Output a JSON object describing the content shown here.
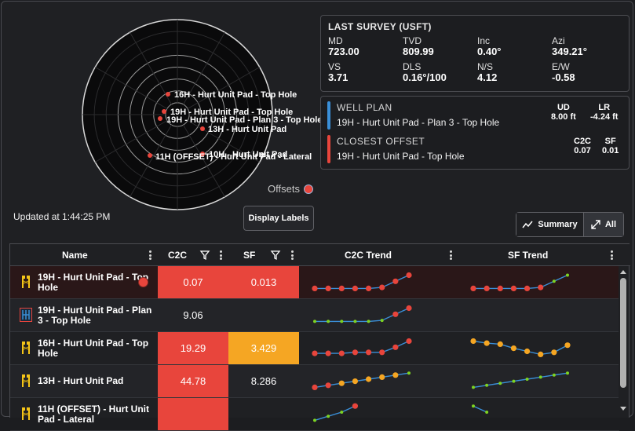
{
  "polar": {
    "labels": [
      {
        "text": "16H - Hurt Unit Pad - Top Hole"
      },
      {
        "text": "19H - Hurt Unit Pad - Top Hole"
      },
      {
        "text": "19H - Hurt Unit Pad - Plan 3 - Top Hole"
      },
      {
        "text": "13H - Hurt Unit Pad"
      },
      {
        "text": "10H - Hurt Unit Pad"
      },
      {
        "text": "11H (OFFSET) - Hurt Unit Pad - Lateral"
      }
    ],
    "marker_color": "#e8453c"
  },
  "legend": {
    "offsets_label": "Offsets"
  },
  "updated": "Updated at 1:44:25 PM",
  "buttons": {
    "display_labels": "Display Labels",
    "summary": "Summary",
    "all": "All"
  },
  "survey": {
    "title": "LAST SURVEY (USFT)",
    "fields": [
      {
        "label": "MD",
        "value": "723.00"
      },
      {
        "label": "TVD",
        "value": "809.99"
      },
      {
        "label": "Inc",
        "value": "0.40°"
      },
      {
        "label": "Azi",
        "value": "349.21°"
      },
      {
        "label": "VS",
        "value": "3.71"
      },
      {
        "label": "DLS",
        "value": "0.16°/100"
      },
      {
        "label": "N/S",
        "value": "4.12"
      },
      {
        "label": "E/W",
        "value": "-0.58"
      }
    ]
  },
  "well_plan": {
    "heading": "WELL PLAN",
    "name": "19H - Hurt Unit Pad - Plan 3 - Top Hole",
    "ud_label": "UD",
    "ud_value": "8.00 ft",
    "lr_label": "LR",
    "lr_value": "-4.24 ft",
    "color": "#3a8fd8"
  },
  "closest_offset": {
    "heading": "CLOSEST OFFSET",
    "name": "19H - Hurt Unit Pad - Top Hole",
    "c2c_label": "C2C",
    "c2c_value": "0.07",
    "sf_label": "SF",
    "sf_value": "0.01",
    "color": "#e8453c"
  },
  "table": {
    "headers": {
      "name": "Name",
      "c2c": "C2C",
      "sf": "SF",
      "c2c_trend": "C2C Trend",
      "sf_trend": "SF Trend"
    },
    "rows": [
      {
        "name": "19H - Hurt Unit Pad - Top Hole",
        "c2c": "0.07",
        "sf": "0.013",
        "c2c_bg": "#e8453c",
        "sf_bg": "#e8453c",
        "icon": "rig-icon",
        "alert": true,
        "c2c_trend": [
          0.1,
          0.1,
          0.1,
          0.1,
          0.1,
          0.15,
          0.45,
          0.75
        ],
        "c2c_colors": [
          "red",
          "red",
          "red",
          "red",
          "red",
          "red",
          "red",
          "red"
        ],
        "sf_trend": [
          0.1,
          0.1,
          0.1,
          0.1,
          0.1,
          0.15,
          0.45,
          0.75
        ],
        "sf_colors": [
          "red",
          "red",
          "red",
          "red",
          "red",
          "red",
          "green",
          "green"
        ]
      },
      {
        "name": "19H - Hurt Unit Pad - Plan 3 - Top Hole",
        "c2c": "9.06",
        "sf": "",
        "c2c_bg": "",
        "sf_bg": "",
        "icon": "plan-icon",
        "alert": false,
        "c2c_trend": [
          0.1,
          0.1,
          0.1,
          0.1,
          0.1,
          0.15,
          0.45,
          0.75
        ],
        "c2c_colors": [
          "green",
          "green",
          "green",
          "green",
          "green",
          "green",
          "red",
          "red"
        ],
        "sf_trend": [],
        "sf_colors": []
      },
      {
        "name": "16H - Hurt Unit Pad - Top Hole",
        "c2c": "19.29",
        "sf": "3.429",
        "c2c_bg": "#e8453c",
        "sf_bg": "#f5a623",
        "icon": "rig-icon",
        "alert": false,
        "c2c_trend": [
          0.15,
          0.15,
          0.15,
          0.2,
          0.2,
          0.2,
          0.45,
          0.75
        ],
        "c2c_colors": [
          "red",
          "red",
          "red",
          "red",
          "red",
          "red",
          "red",
          "red"
        ],
        "sf_trend": [
          0.75,
          0.65,
          0.6,
          0.4,
          0.25,
          0.1,
          0.2,
          0.55
        ],
        "sf_colors": [
          "orange",
          "orange",
          "orange",
          "orange",
          "orange",
          "orange",
          "orange",
          "orange"
        ]
      },
      {
        "name": "13H - Hurt Unit Pad",
        "c2c": "44.78",
        "sf": "8.286",
        "c2c_bg": "#e8453c",
        "sf_bg": "",
        "icon": "rig-icon",
        "alert": false,
        "c2c_trend": [
          0.1,
          0.2,
          0.3,
          0.4,
          0.5,
          0.6,
          0.7,
          0.8
        ],
        "c2c_colors": [
          "red",
          "red",
          "orange",
          "orange",
          "orange",
          "orange",
          "orange",
          "green"
        ],
        "sf_trend": [
          0.1,
          0.2,
          0.3,
          0.4,
          0.5,
          0.6,
          0.7,
          0.8
        ],
        "sf_colors": [
          "green",
          "green",
          "green",
          "green",
          "green",
          "green",
          "green",
          "green"
        ]
      },
      {
        "name": "11H (OFFSET) - Hurt Unit Pad - Lateral",
        "c2c": "",
        "sf": "",
        "c2c_bg": "#e8453c",
        "sf_bg": "",
        "icon": "rig-icon",
        "alert": false,
        "c2c_trend": [
          0.1,
          0.3,
          0.5,
          0.8
        ],
        "c2c_colors": [
          "green",
          "green",
          "green",
          "red"
        ],
        "sf_trend": [
          0.8,
          0.5
        ],
        "sf_colors": [
          "green",
          "green"
        ]
      }
    ]
  },
  "colors": {
    "red": "#e8453c",
    "orange": "#f5a623",
    "green": "#7ed321",
    "line": "#3a8fd8"
  }
}
